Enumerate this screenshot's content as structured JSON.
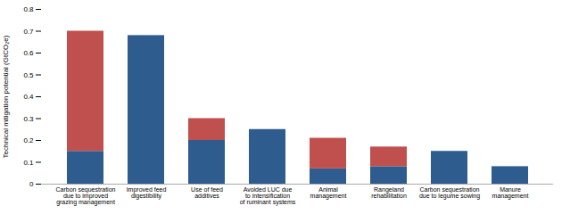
{
  "chart_data": {
    "type": "bar",
    "categories": [
      "Carbon sequestration\ndue to improved\ngrazing management",
      "Improved feed\ndigestibility",
      "Use of feed\nadditives",
      "Avoided LUC due\nto intensification\nof ruminant systems",
      "Animal\nmanagement",
      "Rangeland\nrehabilitation",
      "Carbon sequestration\ndue to legume sowing",
      "Manure\nmanagement"
    ],
    "series": [
      {
        "color": "#2e5c8e",
        "values": [
          0.15,
          0.68,
          0.2,
          0.25,
          0.07,
          0.08,
          0.15,
          0.08
        ]
      },
      {
        "color": "#c0504d",
        "values": [
          0.55,
          0.0,
          0.1,
          0.0,
          0.14,
          0.09,
          0.0,
          0.0
        ]
      }
    ],
    "ylabel": "Technical mitigation potential (GtCO₂e)",
    "ylim": [
      0,
      0.8
    ],
    "yticks": [
      0,
      0.1,
      0.2,
      0.3,
      0.4,
      0.5,
      0.6,
      0.7,
      0.8
    ],
    "stacked": true,
    "grid": false
  }
}
